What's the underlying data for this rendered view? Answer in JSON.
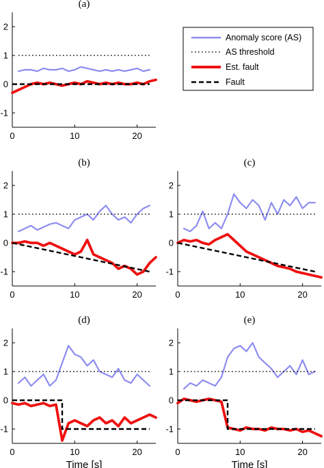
{
  "colors": {
    "anomaly_score": "#8c8cf0",
    "as_threshold": "#000000",
    "est_fault": "#ee1111",
    "fault": "#000000"
  },
  "legend": {
    "placement": "right of panel (a)",
    "entries": [
      {
        "key": "anomaly_score",
        "label": "Anomaly score (AS)",
        "style": "solid-light"
      },
      {
        "key": "as_threshold",
        "label": "AS threshold",
        "style": "dotted"
      },
      {
        "key": "est_fault",
        "label": "Est. fault",
        "style": "solid-thick"
      },
      {
        "key": "fault",
        "label": "Fault",
        "style": "dashed"
      }
    ]
  },
  "chart_data": [
    {
      "type": "line",
      "panel": "(a)",
      "xlabel": "",
      "ylabel": "",
      "xlim": [
        0,
        23
      ],
      "ylim": [
        -1.5,
        2.5
      ],
      "xticks": [
        0,
        10,
        20
      ],
      "yticks": [
        -1,
        0,
        1,
        2
      ],
      "series": [
        {
          "name": "Anomaly score (AS)",
          "x": [
            1,
            2,
            3,
            4,
            5,
            6,
            7,
            8,
            9,
            10,
            11,
            12,
            13,
            14,
            15,
            16,
            17,
            18,
            19,
            20,
            21,
            22
          ],
          "values": [
            0.45,
            0.5,
            0.5,
            0.45,
            0.55,
            0.5,
            0.5,
            0.55,
            0.45,
            0.5,
            0.6,
            0.55,
            0.5,
            0.45,
            0.5,
            0.45,
            0.5,
            0.45,
            0.5,
            0.55,
            0.45,
            0.5
          ]
        },
        {
          "name": "AS threshold",
          "x": [
            1,
            22
          ],
          "values": [
            1,
            1
          ]
        },
        {
          "name": "Est. fault",
          "x": [
            0,
            1,
            2,
            3,
            4,
            5,
            6,
            7,
            8,
            9,
            10,
            11,
            12,
            13,
            14,
            15,
            16,
            17,
            18,
            19,
            20,
            21,
            22,
            23
          ],
          "values": [
            -0.3,
            -0.2,
            -0.1,
            0,
            0.05,
            0,
            0.05,
            0,
            -0.05,
            0,
            0.05,
            0,
            0.1,
            0.05,
            0,
            0.05,
            0,
            0.05,
            0,
            0,
            0.05,
            0,
            0.1,
            0.15
          ]
        },
        {
          "name": "Fault",
          "x": [
            0,
            22
          ],
          "values": [
            0,
            0
          ]
        }
      ]
    },
    {
      "type": "line",
      "panel": "(b)",
      "xlabel": "",
      "ylabel": "",
      "xlim": [
        0,
        23
      ],
      "ylim": [
        -1.5,
        2.5
      ],
      "xticks": [
        0,
        10,
        20
      ],
      "yticks": [
        -1,
        0,
        1,
        2
      ],
      "series": [
        {
          "name": "Anomaly score (AS)",
          "x": [
            1,
            2,
            3,
            4,
            5,
            6,
            7,
            8,
            9,
            10,
            11,
            12,
            13,
            14,
            15,
            16,
            17,
            18,
            19,
            20,
            21,
            22
          ],
          "values": [
            0.4,
            0.5,
            0.6,
            0.45,
            0.55,
            0.65,
            0.7,
            0.6,
            0.5,
            0.8,
            0.9,
            1.0,
            0.8,
            1.1,
            1.3,
            1.0,
            0.8,
            0.9,
            0.7,
            1.0,
            1.2,
            1.3
          ]
        },
        {
          "name": "AS threshold",
          "x": [
            1,
            22
          ],
          "values": [
            1,
            1
          ]
        },
        {
          "name": "Est. fault",
          "x": [
            0,
            1,
            2,
            3,
            4,
            5,
            6,
            7,
            8,
            9,
            10,
            11,
            12,
            13,
            14,
            15,
            16,
            17,
            18,
            19,
            20,
            21,
            22,
            23
          ],
          "values": [
            0,
            0,
            0.05,
            0,
            0,
            -0.1,
            0,
            -0.1,
            -0.2,
            -0.3,
            -0.4,
            -0.3,
            0.1,
            -0.4,
            -0.5,
            -0.6,
            -0.7,
            -0.9,
            -0.8,
            -0.9,
            -1.1,
            -1.0,
            -0.7,
            -0.5
          ]
        },
        {
          "name": "Fault",
          "x": [
            0,
            22
          ],
          "values": [
            0,
            -1
          ]
        }
      ]
    },
    {
      "type": "line",
      "panel": "(c)",
      "xlabel": "",
      "ylabel": "",
      "xlim": [
        0,
        23
      ],
      "ylim": [
        -1.5,
        2.5
      ],
      "xticks": [
        0,
        10,
        20
      ],
      "yticks": [
        -1,
        0,
        1,
        2
      ],
      "series": [
        {
          "name": "Anomaly score (AS)",
          "x": [
            1,
            2,
            3,
            4,
            5,
            6,
            7,
            8,
            9,
            10,
            11,
            12,
            13,
            14,
            15,
            16,
            17,
            18,
            19,
            20,
            21,
            22
          ],
          "values": [
            0.5,
            0.4,
            0.6,
            1.1,
            0.5,
            0.7,
            0.5,
            1.0,
            1.7,
            1.4,
            1.2,
            1.5,
            1.3,
            0.8,
            1.4,
            1.0,
            1.5,
            1.3,
            1.6,
            1.2,
            1.4,
            1.4
          ]
        },
        {
          "name": "AS threshold",
          "x": [
            1,
            22
          ],
          "values": [
            1,
            1
          ]
        },
        {
          "name": "Est. fault",
          "x": [
            0,
            1,
            2,
            3,
            4,
            5,
            6,
            7,
            8,
            9,
            10,
            11,
            12,
            13,
            14,
            15,
            16,
            17,
            18,
            19,
            20,
            21,
            22,
            23
          ],
          "values": [
            0,
            0.1,
            0.05,
            0.1,
            0,
            -0.05,
            0.1,
            0.2,
            0.3,
            0.1,
            -0.1,
            -0.3,
            -0.4,
            -0.5,
            -0.6,
            -0.7,
            -0.8,
            -0.85,
            -0.9,
            -1.0,
            -1.05,
            -1.1,
            -1.15,
            -1.2
          ]
        },
        {
          "name": "Fault",
          "x": [
            0,
            22
          ],
          "values": [
            0,
            -1
          ]
        }
      ]
    },
    {
      "type": "line",
      "panel": "(d)",
      "xlabel": "Time [s]",
      "ylabel": "",
      "xlim": [
        0,
        23
      ],
      "ylim": [
        -1.5,
        2.5
      ],
      "xticks": [
        0,
        10,
        20
      ],
      "yticks": [
        -1,
        0,
        1,
        2
      ],
      "series": [
        {
          "name": "Anomaly score (AS)",
          "x": [
            1,
            2,
            3,
            4,
            5,
            6,
            7,
            8,
            9,
            10,
            11,
            12,
            13,
            14,
            15,
            16,
            17,
            18,
            19,
            20,
            21,
            22
          ],
          "values": [
            0.6,
            0.8,
            0.5,
            0.7,
            0.9,
            0.5,
            0.7,
            1.3,
            1.9,
            1.6,
            1.5,
            1.2,
            1.4,
            1.0,
            0.9,
            0.8,
            1.1,
            0.7,
            0.6,
            0.9,
            0.7,
            0.5
          ]
        },
        {
          "name": "AS threshold",
          "x": [
            1,
            22
          ],
          "values": [
            1,
            1
          ]
        },
        {
          "name": "Est. fault",
          "x": [
            0,
            1,
            2,
            3,
            4,
            5,
            6,
            7,
            8,
            9,
            10,
            11,
            12,
            13,
            14,
            15,
            16,
            17,
            18,
            19,
            20,
            21,
            22,
            23
          ],
          "values": [
            -0.1,
            -0.15,
            -0.1,
            -0.2,
            -0.15,
            -0.1,
            -0.2,
            -0.15,
            -1.4,
            -0.8,
            -0.7,
            -0.8,
            -0.9,
            -0.7,
            -0.6,
            -0.8,
            -0.7,
            -0.9,
            -0.6,
            -0.8,
            -0.7,
            -0.6,
            -0.5,
            -0.6
          ]
        },
        {
          "name": "Fault",
          "x": [
            0,
            8,
            8,
            22
          ],
          "values": [
            0,
            0,
            -1,
            -1
          ]
        }
      ]
    },
    {
      "type": "line",
      "panel": "(e)",
      "xlabel": "Time [s]",
      "ylabel": "",
      "xlim": [
        0,
        23
      ],
      "ylim": [
        -1.5,
        2.5
      ],
      "xticks": [
        0,
        10,
        20
      ],
      "yticks": [
        -1,
        0,
        1,
        2
      ],
      "series": [
        {
          "name": "Anomaly score (AS)",
          "x": [
            1,
            2,
            3,
            4,
            5,
            6,
            7,
            8,
            9,
            10,
            11,
            12,
            13,
            14,
            15,
            16,
            17,
            18,
            19,
            20,
            21,
            22
          ],
          "values": [
            0.4,
            0.6,
            0.5,
            0.7,
            0.6,
            0.5,
            0.8,
            1.5,
            1.8,
            1.9,
            1.7,
            2.0,
            1.5,
            1.3,
            1.1,
            0.8,
            1.0,
            1.2,
            0.9,
            1.4,
            0.9,
            1.0
          ]
        },
        {
          "name": "AS threshold",
          "x": [
            1,
            22
          ],
          "values": [
            1,
            1
          ]
        },
        {
          "name": "Est. fault",
          "x": [
            0,
            1,
            2,
            3,
            4,
            5,
            6,
            7,
            8,
            9,
            10,
            11,
            12,
            13,
            14,
            15,
            16,
            17,
            18,
            19,
            20,
            21,
            22,
            23
          ],
          "values": [
            -0.1,
            0.05,
            0,
            -0.05,
            0,
            0.05,
            0,
            -0.05,
            -0.95,
            -1.0,
            -1.05,
            -0.95,
            -1.0,
            -1.0,
            -1.05,
            -0.95,
            -1.0,
            -1.0,
            -1.05,
            -1.0,
            -1.1,
            -1.05,
            -1.15,
            -1.25
          ]
        },
        {
          "name": "Fault",
          "x": [
            0,
            8,
            8,
            22
          ],
          "values": [
            0,
            0,
            -1,
            -1
          ]
        }
      ]
    }
  ]
}
